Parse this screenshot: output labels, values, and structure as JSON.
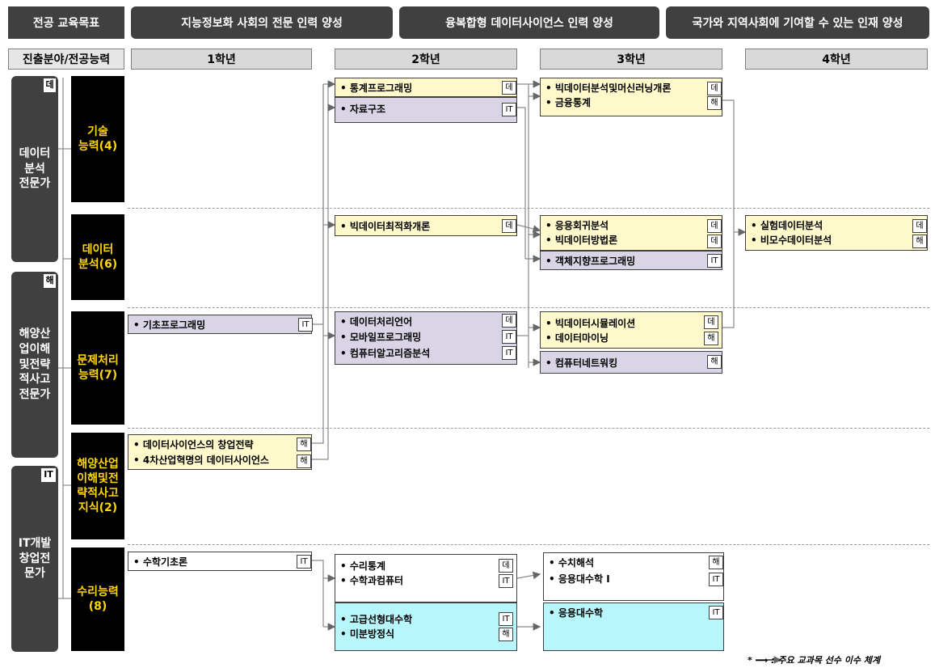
{
  "header": {
    "title": "전공 교육목표",
    "goals": [
      "지능정보화 사회의 전문 인력 양성",
      "융복합형 데이터사이언스 인력 양성",
      "국가와 지역사회에 기여할 수 있는 인재 양성"
    ]
  },
  "subheader": {
    "label": "진출분야/전공능력",
    "years": [
      "1학년",
      "2학년",
      "3학년",
      "4학년"
    ]
  },
  "fields": [
    {
      "tag": "데",
      "label_lines": [
        "데이터",
        "분석",
        "전문가"
      ]
    },
    {
      "tag": "해",
      "label_lines": [
        "해양산",
        "업이해",
        "및전략",
        "적사고",
        "전문가"
      ]
    },
    {
      "tag": "IT",
      "label_lines": [
        "IT개발",
        "창업전",
        "문가"
      ]
    }
  ],
  "competencies": [
    {
      "lines": [
        "기술",
        "능력(4)"
      ]
    },
    {
      "lines": [
        "데이터",
        "분석(6)"
      ]
    },
    {
      "lines": [
        "문제처리",
        "능력(7)"
      ]
    },
    {
      "lines": [
        "해양산업",
        "이해및전",
        "략적사고",
        "지식(2)"
      ]
    },
    {
      "lines": [
        "수리능력",
        "(8)"
      ]
    }
  ],
  "courses": {
    "y2_stats_prog": {
      "name": "통계프로그래밍",
      "tag": "데"
    },
    "y2_data_struct": {
      "name": "자료구조",
      "tag": "IT"
    },
    "y3_bigdata_ml": {
      "name": "빅데이터분석및머신러닝개론",
      "tag": "데"
    },
    "y3_fin_stats": {
      "name": "금융통계",
      "tag": "해"
    },
    "y2_bigdata_opt": {
      "name": "빅데이터최적화개론",
      "tag": "데"
    },
    "y3_applied_reg": {
      "name": "응용회귀분석",
      "tag": "데"
    },
    "y3_bigdata_method": {
      "name": "빅데이터방법론",
      "tag": "데"
    },
    "y3_oop": {
      "name": "객체지향프로그래밍",
      "tag": "IT"
    },
    "y4_exp_data": {
      "name": "실험데이터분석",
      "tag": "데"
    },
    "y4_nonparam": {
      "name": "비모수데이터분석",
      "tag": "해"
    },
    "y1_basic_prog": {
      "name": "기초프로그래밍",
      "tag": "IT"
    },
    "y2_data_lang": {
      "name": "데이터처리언어",
      "tag": "데"
    },
    "y2_mobile_prog": {
      "name": "모바일프로그래밍",
      "tag": "IT"
    },
    "y2_algo": {
      "name": "컴퓨터알고리즘분석",
      "tag": "IT"
    },
    "y3_bigdata_sim": {
      "name": "빅데이터시뮬레이션",
      "tag": "데"
    },
    "y3_data_mining": {
      "name": "데이터마이닝",
      "tag": "해"
    },
    "y3_network": {
      "name": "컴퓨터네트워킹",
      "tag": "해"
    },
    "y1_startup": {
      "name": "데이터사이언스의 창업전략",
      "tag": "해"
    },
    "y1_4th_rev": {
      "name": "4차산업혁명의 데이터사이언스",
      "tag": "해"
    },
    "y1_math_basic": {
      "name": "수학기초론",
      "tag": "IT"
    },
    "y2_math_stats": {
      "name": "수리통계",
      "tag": "데"
    },
    "y2_math_comp": {
      "name": "수학과컴퓨터",
      "tag": "IT"
    },
    "y3_numerical": {
      "name": "수치해석",
      "tag": "해"
    },
    "y3_applied_math1": {
      "name": "응용대수학 I",
      "tag": "IT"
    },
    "y2_adv_linalg": {
      "name": "고급선형대수학",
      "tag": "IT"
    },
    "y2_diff_eq": {
      "name": "미분방정식",
      "tag": "해"
    },
    "y3_applied_math": {
      "name": "응용대수학",
      "tag": "IT"
    }
  },
  "legend": "* ⟶ : 주요 교과목 선수 이수 체계",
  "colors": {
    "header": "#404040",
    "competency_bg": "#000000",
    "competency_text": "#ffd700",
    "yellow": "#fff9cc",
    "purple": "#d9d5e6",
    "cyan": "#b7f6fb"
  }
}
